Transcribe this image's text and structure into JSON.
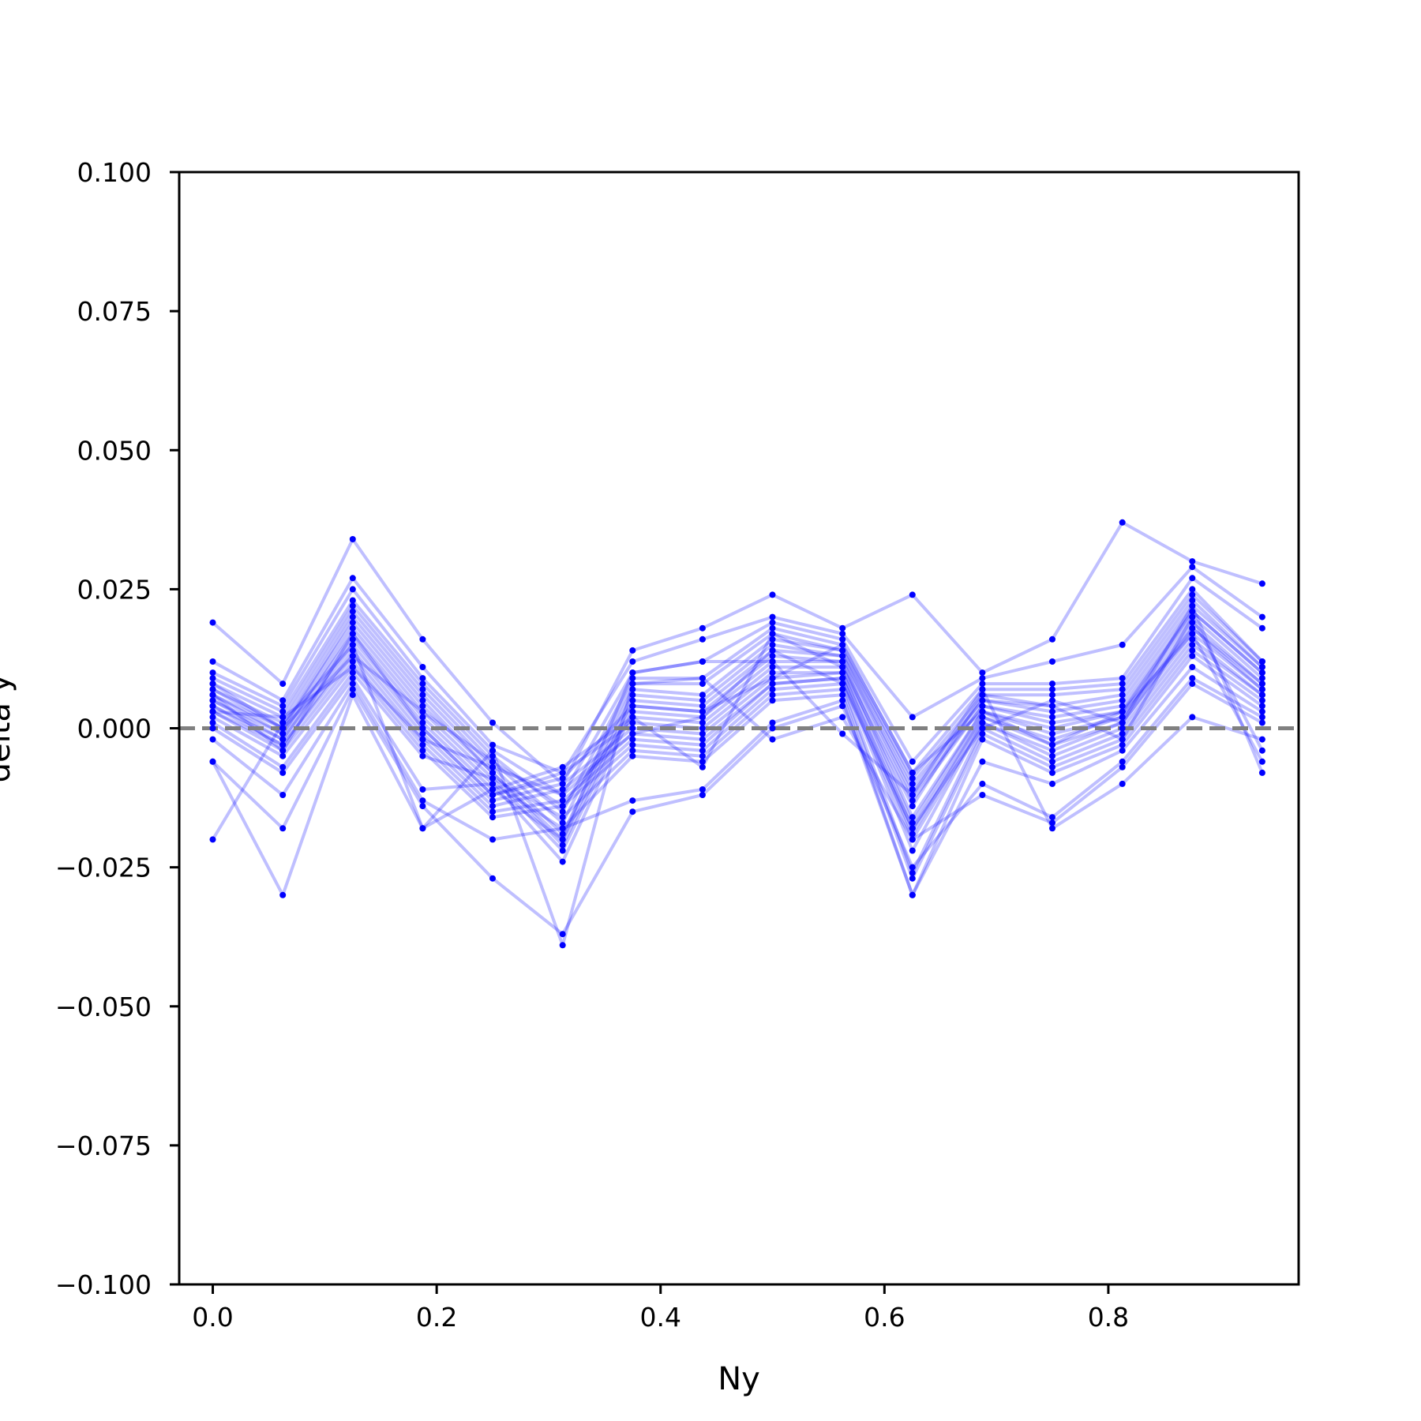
{
  "chart_data": {
    "type": "line",
    "title": "",
    "xlabel": "Ny",
    "ylabel": "delta y",
    "xlim": [
      -0.03,
      0.97
    ],
    "ylim": [
      -0.1,
      0.1
    ],
    "xticks": [
      {
        "value": 0.0,
        "label": "0.0"
      },
      {
        "value": 0.2,
        "label": "0.2"
      },
      {
        "value": 0.4,
        "label": "0.4"
      },
      {
        "value": 0.6,
        "label": "0.6"
      },
      {
        "value": 0.8,
        "label": "0.8"
      }
    ],
    "yticks": [
      {
        "value": 0.1,
        "label": "0.100"
      },
      {
        "value": 0.075,
        "label": "0.075"
      },
      {
        "value": 0.05,
        "label": "0.050"
      },
      {
        "value": 0.025,
        "label": "0.025"
      },
      {
        "value": 0.0,
        "label": "0.000"
      },
      {
        "value": -0.025,
        "label": "−0.025"
      },
      {
        "value": -0.05,
        "label": "−0.050"
      },
      {
        "value": -0.075,
        "label": "−0.075"
      },
      {
        "value": -0.1,
        "label": "−0.100"
      }
    ],
    "grid": false,
    "reference_line": {
      "y": 0.0,
      "style": "dashed",
      "color": "#808080"
    },
    "line_color": "#0000ff",
    "line_opacity": 0.25,
    "marker_color": "#0000ff",
    "x": [
      0.0,
      0.0625,
      0.125,
      0.1875,
      0.25,
      0.3125,
      0.375,
      0.4375,
      0.5,
      0.5625,
      0.625,
      0.6875,
      0.75,
      0.8125,
      0.875,
      0.9375
    ],
    "series": [
      {
        "values": [
          0.019,
          0.008,
          0.034,
          0.016,
          0.001,
          -0.01,
          0.014,
          0.018,
          0.024,
          0.018,
          0.024,
          0.01,
          0.016,
          0.037,
          0.03,
          0.026
        ]
      },
      {
        "values": [
          0.012,
          0.005,
          0.027,
          0.011,
          -0.003,
          -0.008,
          0.012,
          0.016,
          0.02,
          0.017,
          0.002,
          0.009,
          0.012,
          0.015,
          0.029,
          0.02
        ]
      },
      {
        "values": [
          0.01,
          0.004,
          0.025,
          0.009,
          -0.004,
          -0.012,
          0.01,
          0.012,
          0.019,
          0.016,
          -0.006,
          0.008,
          0.008,
          0.009,
          0.027,
          0.018
        ]
      },
      {
        "values": [
          0.009,
          0.003,
          0.023,
          0.008,
          -0.005,
          -0.015,
          0.009,
          0.009,
          0.018,
          0.015,
          -0.008,
          0.007,
          0.007,
          0.008,
          0.025,
          0.012
        ]
      },
      {
        "values": [
          0.008,
          0.002,
          0.022,
          0.007,
          -0.006,
          -0.017,
          0.008,
          0.008,
          0.017,
          0.014,
          -0.009,
          0.006,
          0.006,
          0.007,
          0.024,
          0.012
        ]
      },
      {
        "values": [
          0.007,
          0.001,
          0.021,
          0.006,
          -0.007,
          -0.019,
          0.007,
          0.006,
          0.016,
          0.014,
          -0.01,
          0.005,
          0.004,
          0.006,
          0.023,
          0.011
        ]
      },
      {
        "values": [
          0.007,
          0.0,
          0.02,
          0.005,
          -0.008,
          -0.02,
          0.006,
          0.005,
          0.015,
          0.013,
          -0.011,
          0.005,
          0.003,
          0.005,
          0.022,
          0.011
        ]
      },
      {
        "values": [
          0.006,
          0.0,
          0.019,
          0.004,
          -0.008,
          -0.021,
          0.005,
          0.004,
          0.014,
          0.013,
          -0.012,
          0.004,
          0.002,
          0.004,
          0.021,
          0.01
        ]
      },
      {
        "values": [
          0.006,
          -0.001,
          0.018,
          0.003,
          -0.009,
          -0.022,
          0.004,
          0.003,
          0.013,
          0.012,
          -0.013,
          0.004,
          0.001,
          0.003,
          0.021,
          0.01
        ]
      },
      {
        "values": [
          0.005,
          -0.001,
          0.017,
          0.002,
          -0.01,
          -0.024,
          0.003,
          0.002,
          0.012,
          0.012,
          -0.016,
          0.003,
          0.0,
          0.003,
          0.02,
          0.009
        ]
      },
      {
        "values": [
          0.005,
          -0.002,
          0.016,
          0.001,
          -0.011,
          -0.007,
          0.002,
          0.001,
          0.011,
          0.011,
          -0.017,
          0.003,
          -0.001,
          0.002,
          0.019,
          0.008
        ]
      },
      {
        "values": [
          0.004,
          -0.002,
          0.015,
          0.0,
          -0.012,
          -0.008,
          0.001,
          0.0,
          0.01,
          0.01,
          -0.018,
          0.002,
          -0.002,
          0.002,
          0.018,
          0.008
        ]
      },
      {
        "values": [
          0.004,
          -0.003,
          0.014,
          -0.001,
          -0.013,
          -0.01,
          0.0,
          -0.001,
          0.009,
          0.01,
          -0.019,
          0.002,
          -0.003,
          0.001,
          0.018,
          0.007
        ]
      },
      {
        "values": [
          0.003,
          -0.003,
          0.013,
          -0.002,
          -0.014,
          -0.011,
          -0.001,
          -0.002,
          0.008,
          0.009,
          -0.02,
          0.001,
          -0.004,
          0.001,
          0.017,
          0.007
        ]
      },
      {
        "values": [
          0.003,
          -0.004,
          0.012,
          -0.003,
          -0.015,
          -0.013,
          -0.002,
          -0.003,
          0.008,
          0.009,
          -0.022,
          0.001,
          -0.005,
          0.0,
          0.016,
          0.006
        ]
      },
      {
        "values": [
          0.002,
          -0.005,
          0.011,
          -0.004,
          -0.016,
          -0.014,
          -0.003,
          -0.004,
          0.007,
          0.008,
          -0.026,
          0.0,
          -0.006,
          -0.001,
          0.015,
          0.006
        ]
      },
      {
        "values": [
          0.001,
          -0.007,
          0.01,
          -0.005,
          -0.009,
          -0.016,
          -0.004,
          -0.005,
          0.006,
          0.007,
          -0.027,
          -0.001,
          -0.007,
          -0.002,
          0.014,
          0.005
        ]
      },
      {
        "values": [
          0.0,
          -0.008,
          0.009,
          -0.011,
          -0.01,
          -0.018,
          -0.005,
          -0.006,
          0.005,
          0.006,
          -0.03,
          -0.002,
          -0.008,
          -0.003,
          0.013,
          0.004
        ]
      },
      {
        "values": [
          -0.002,
          -0.012,
          0.008,
          -0.013,
          -0.02,
          -0.018,
          -0.013,
          -0.011,
          0.001,
          0.005,
          -0.03,
          -0.006,
          -0.01,
          -0.004,
          0.011,
          0.003
        ]
      },
      {
        "values": [
          -0.006,
          -0.018,
          0.007,
          -0.014,
          -0.027,
          -0.037,
          -0.015,
          -0.012,
          0.0,
          0.004,
          -0.025,
          -0.01,
          -0.016,
          -0.006,
          0.009,
          0.002
        ]
      },
      {
        "values": [
          -0.006,
          -0.03,
          0.006,
          -0.018,
          -0.004,
          -0.039,
          0.008,
          0.009,
          -0.002,
          0.002,
          -0.02,
          -0.012,
          -0.017,
          -0.007,
          0.008,
          0.001
        ]
      },
      {
        "values": [
          -0.02,
          0.001,
          0.015,
          -0.018,
          -0.011,
          -0.02,
          0.01,
          0.012,
          0.012,
          -0.001,
          -0.012,
          0.007,
          -0.018,
          -0.01,
          0.002,
          -0.002
        ]
      },
      {
        "values": [
          0.008,
          0.0,
          0.013,
          0.003,
          -0.006,
          -0.014,
          0.002,
          -0.007,
          0.017,
          0.011,
          -0.014,
          0.006,
          0.004,
          -0.002,
          0.02,
          -0.004
        ]
      },
      {
        "values": [
          0.006,
          -0.004,
          0.017,
          0.0,
          -0.012,
          -0.009,
          0.004,
          0.003,
          0.009,
          0.015,
          -0.008,
          0.003,
          -0.003,
          0.003,
          0.017,
          -0.006
        ]
      },
      {
        "values": [
          0.003,
          0.002,
          0.011,
          -0.002,
          -0.007,
          -0.012,
          -0.001,
          0.002,
          0.014,
          0.008,
          -0.018,
          0.0,
          0.005,
          0.001,
          0.022,
          -0.008
        ]
      }
    ]
  }
}
